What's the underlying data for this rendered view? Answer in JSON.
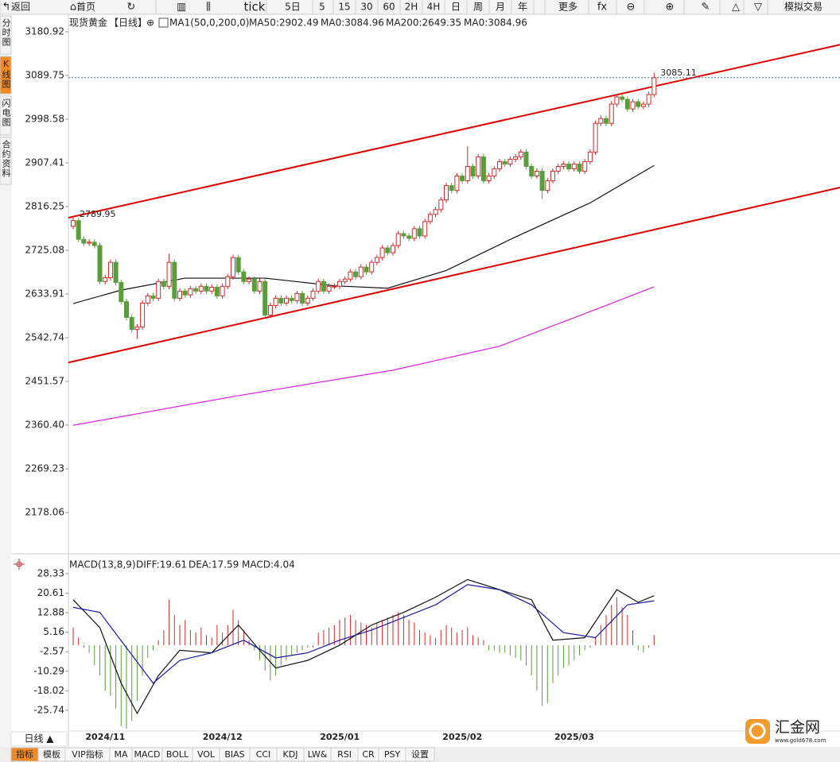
{
  "toolbar": {
    "items": [
      "返回",
      "首页",
      "tick",
      "5日",
      "5",
      "15",
      "30",
      "60",
      "2H",
      "4H",
      "日",
      "周",
      "月",
      "年",
      "更多",
      "模拟交易"
    ]
  },
  "side_tabs": [
    "分时图",
    "K线图",
    "闪电图",
    "合约资料"
  ],
  "bottom": {
    "period": "日线 ▲",
    "tabs": [
      "指标",
      "模板",
      "VIP指标",
      "MA",
      "MACD",
      "BOLL",
      "VOL",
      "BIAS",
      "CCI",
      "KDJ",
      "LW&",
      "RSI",
      "CR",
      "PSY",
      "设置"
    ]
  },
  "logo": {
    "name": "汇金网",
    "url": "www.gold678.com"
  },
  "chart_data": [
    {
      "type": "candlestick",
      "header": [
        "现货黄金",
        "【日线】",
        "MA1(50,0,200,0)",
        "MA50:2902.49",
        "MA0:3084.96",
        "MA200:2649.35",
        "MA0:3084.96"
      ],
      "header_colors": [
        "#222",
        "#f08000",
        "#222",
        "#222",
        "#1a1aa6",
        "#e020e0",
        "#f08000"
      ],
      "up_color": "#d42a2a",
      "down_color": "#5a9e3c",
      "open": [
        2775,
        2787,
        2748,
        2740,
        2742,
        2735,
        2660,
        2668,
        2700,
        2658,
        2618,
        2585,
        2560,
        2565,
        2615,
        2630,
        2625,
        2660,
        2650,
        2700,
        2625,
        2640,
        2632,
        2645,
        2640,
        2650,
        2640,
        2648,
        2630,
        2650,
        2670,
        2710,
        2680,
        2660,
        2665,
        2640,
        2660,
        2590,
        2610,
        2625,
        2615,
        2625,
        2620,
        2635,
        2615,
        2625,
        2640,
        2660,
        2640,
        2650,
        2650,
        2660,
        2665,
        2680,
        2670,
        2690,
        2680,
        2700,
        2710,
        2730,
        2720,
        2735,
        2760,
        2755,
        2750,
        2770,
        2755,
        2785,
        2800,
        2810,
        2830,
        2860,
        2850,
        2880,
        2870,
        2900,
        2880,
        2920,
        2870,
        2880,
        2895,
        2910,
        2905,
        2915,
        2920,
        2930,
        2900,
        2880,
        2890,
        2850,
        2870,
        2890,
        2900,
        2905,
        2895,
        2905,
        2890,
        2910,
        2930,
        2990,
        3000,
        2990,
        3030,
        3045,
        3040,
        3020,
        3035,
        3025,
        3030,
        3050
      ],
      "high": [
        2793,
        2793,
        2754,
        2748,
        2748,
        2741,
        2674,
        2706,
        2706,
        2664,
        2624,
        2591,
        2571,
        2621,
        2636,
        2636,
        2666,
        2666,
        2718,
        2706,
        2646,
        2646,
        2651,
        2651,
        2656,
        2656,
        2654,
        2654,
        2656,
        2676,
        2716,
        2716,
        2686,
        2671,
        2671,
        2666,
        2666,
        2616,
        2631,
        2631,
        2631,
        2631,
        2641,
        2641,
        2631,
        2646,
        2666,
        2666,
        2656,
        2656,
        2666,
        2671,
        2686,
        2686,
        2696,
        2696,
        2706,
        2716,
        2736,
        2736,
        2741,
        2766,
        2766,
        2761,
        2776,
        2776,
        2791,
        2806,
        2816,
        2836,
        2866,
        2866,
        2886,
        2886,
        2942,
        2906,
        2926,
        2926,
        2886,
        2901,
        2916,
        2916,
        2921,
        2926,
        2936,
        2936,
        2906,
        2896,
        2896,
        2876,
        2896,
        2906,
        2911,
        2911,
        2911,
        2911,
        2916,
        2936,
        2996,
        3006,
        3006,
        3036,
        3051,
        3051,
        3046,
        3041,
        3041,
        3036,
        3056,
        3096
      ],
      "low": [
        2769,
        2742,
        2734,
        2734,
        2729,
        2654,
        2654,
        2662,
        2652,
        2612,
        2579,
        2554,
        2540,
        2559,
        2609,
        2619,
        2619,
        2644,
        2644,
        2619,
        2619,
        2626,
        2626,
        2634,
        2634,
        2634,
        2634,
        2624,
        2624,
        2644,
        2664,
        2674,
        2654,
        2654,
        2634,
        2634,
        2584,
        2584,
        2604,
        2609,
        2609,
        2614,
        2614,
        2609,
        2609,
        2619,
        2634,
        2634,
        2634,
        2644,
        2644,
        2654,
        2659,
        2664,
        2664,
        2674,
        2674,
        2694,
        2704,
        2714,
        2714,
        2729,
        2749,
        2744,
        2744,
        2749,
        2749,
        2779,
        2794,
        2804,
        2824,
        2844,
        2844,
        2864,
        2864,
        2874,
        2874,
        2864,
        2864,
        2874,
        2889,
        2899,
        2899,
        2909,
        2914,
        2894,
        2874,
        2874,
        2832,
        2844,
        2864,
        2884,
        2894,
        2889,
        2889,
        2884,
        2884,
        2904,
        2924,
        2984,
        2984,
        2984,
        3024,
        3034,
        3014,
        3014,
        3019,
        3019,
        3024,
        3044
      ],
      "close": [
        2787,
        2748,
        2740,
        2742,
        2735,
        2660,
        2668,
        2700,
        2658,
        2618,
        2585,
        2560,
        2565,
        2615,
        2630,
        2625,
        2660,
        2650,
        2700,
        2625,
        2640,
        2632,
        2645,
        2640,
        2650,
        2640,
        2648,
        2630,
        2650,
        2670,
        2710,
        2680,
        2660,
        2665,
        2640,
        2660,
        2590,
        2610,
        2625,
        2615,
        2625,
        2620,
        2635,
        2615,
        2625,
        2640,
        2660,
        2640,
        2650,
        2650,
        2660,
        2665,
        2680,
        2670,
        2690,
        2680,
        2700,
        2710,
        2730,
        2720,
        2735,
        2760,
        2755,
        2750,
        2770,
        2755,
        2785,
        2800,
        2810,
        2830,
        2860,
        2850,
        2880,
        2870,
        2900,
        2880,
        2920,
        2870,
        2880,
        2895,
        2910,
        2905,
        2915,
        2920,
        2930,
        2900,
        2880,
        2890,
        2850,
        2870,
        2890,
        2900,
        2905,
        2895,
        2905,
        2890,
        2910,
        2930,
        2990,
        3000,
        2990,
        3030,
        3045,
        3040,
        3020,
        3035,
        3025,
        3030,
        3050,
        3085.11
      ],
      "lines": [
        {
          "color": "#111111",
          "x": [
            0,
            9,
            21,
            36,
            49,
            59,
            70,
            83,
            97,
            109
          ],
          "values": [
            2614,
            2642,
            2667,
            2667,
            2651,
            2646,
            2683,
            2753,
            2824,
            2902
          ]
        },
        {
          "color": "#e020e0",
          "x": [
            0,
            30,
            60,
            80,
            100,
            109
          ],
          "values": [
            2360,
            2420,
            2475,
            2525,
            2610,
            2649
          ]
        }
      ],
      "trend_lines": [
        {
          "color": "#e00000",
          "values": [
            2793,
            3154
          ]
        },
        {
          "color": "#e00000",
          "values": [
            2491,
            2856
          ]
        }
      ],
      "ref_line": 3085.11,
      "annotations": [
        {
          "text": "2789.95",
          "x": 0,
          "y": 2789.95
        },
        {
          "text": "3085.11",
          "x": 109,
          "y": 3085.11
        }
      ],
      "ylim": [
        2103.5,
        3205.8
      ],
      "yticks": [
        3180.92,
        3089.75,
        2998.58,
        2907.41,
        2816.25,
        2725.08,
        2633.91,
        2542.74,
        2451.57,
        {
          "value": 2360.4,
          "label": "2360.40"
        },
        2269.23,
        2178.06
      ]
    },
    {
      "type": "macd",
      "header": [
        "MACD(13,8,9)",
        "DIFF:19.61",
        "DEA:17.59",
        "MACD:4.04"
      ],
      "header_colors": [
        "#222",
        "#222",
        "#1a1aa6",
        "#e020e0"
      ],
      "up_color": "#d42a2a",
      "down_color": "#5a9e3c",
      "values": [
        7,
        3,
        -1,
        -3,
        -8,
        -12,
        -18,
        -20,
        -25,
        -32,
        -33,
        -30,
        -22,
        -12,
        -5,
        -2,
        2,
        6,
        18,
        12,
        8,
        10,
        6,
        5,
        7,
        4,
        3,
        8,
        5,
        8,
        14,
        10,
        6,
        2,
        -2,
        -6,
        -10,
        -14,
        -12,
        -8,
        -6,
        -4,
        -3,
        -2,
        -1,
        -1,
        5,
        6,
        7,
        8,
        10,
        11,
        12,
        10,
        9,
        8,
        7,
        9,
        10,
        11,
        12,
        13,
        12,
        10,
        9,
        6,
        5,
        4,
        3,
        6,
        8,
        7,
        5,
        6,
        7,
        4,
        3,
        2,
        -2,
        -2,
        -3,
        -3,
        -4,
        -5,
        -6,
        -8,
        -12,
        -18,
        -24,
        -23,
        -15,
        -12,
        -9,
        -8,
        -6,
        -4,
        -2,
        -1,
        3,
        8,
        12,
        16,
        19,
        15,
        12,
        6,
        -2,
        -3,
        -1,
        4.04
      ],
      "lines": [
        {
          "color": "#111111",
          "x": [
            0,
            5,
            9,
            12,
            16,
            20,
            26,
            31,
            35,
            38,
            44,
            50,
            56,
            62,
            68,
            74,
            80,
            86,
            90,
            96,
            102,
            106,
            109
          ],
          "values": [
            18,
            7,
            -15,
            -27,
            -12,
            -2,
            -3,
            8,
            -2,
            -9,
            -6,
            0,
            8,
            13,
            19,
            26,
            22,
            18,
            2,
            3,
            22,
            17,
            19.61
          ]
        },
        {
          "color": "#1a1aa6",
          "x": [
            0,
            5,
            10,
            15,
            20,
            26,
            32,
            38,
            44,
            50,
            56,
            62,
            68,
            74,
            80,
            86,
            92,
            98,
            104,
            109
          ],
          "values": [
            15,
            13,
            -1,
            -15,
            -6,
            -3,
            2,
            -5,
            -3,
            2,
            6,
            11,
            16,
            24,
            22,
            16,
            5,
            3,
            16,
            17.59
          ]
        }
      ],
      "ylim": [
        -33.95,
        33.67
      ],
      "yticks": [
        28.33,
        20.61,
        12.88,
        5.16,
        -2.57,
        -10.29,
        -18.02,
        -25.74
      ],
      "xticks": [
        {
          "value": 2,
          "label": "2024/11"
        },
        {
          "value": 24,
          "label": "2024/12"
        },
        {
          "value": 46,
          "label": "2025/01"
        },
        {
          "value": 69,
          "label": "2025/02"
        },
        {
          "value": 90,
          "label": "2025/03"
        }
      ]
    }
  ]
}
